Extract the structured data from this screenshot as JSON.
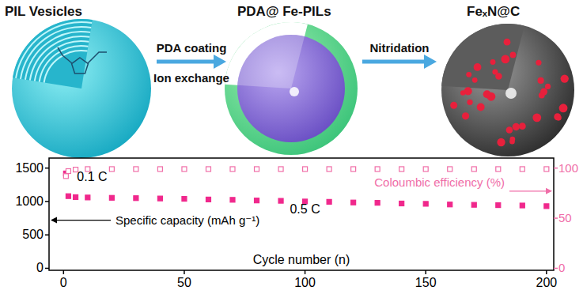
{
  "chart_data": {
    "type": "scatter",
    "xlabel": "Cycle number (n)",
    "ylabel": "Specific capacity (mAh g⁻¹)",
    "y2label": "Coloumbic efficiency (%)",
    "x": [
      1,
      2,
      5,
      10,
      20,
      30,
      40,
      50,
      60,
      70,
      80,
      90,
      100,
      110,
      120,
      130,
      140,
      150,
      160,
      170,
      180,
      190,
      200
    ],
    "series": [
      {
        "name": "Specific capacity",
        "color": "#f0288c",
        "marker": "square",
        "values": [
          1420,
          1080,
          1065,
          1060,
          1055,
          1050,
          1045,
          1040,
          1030,
          1025,
          1015,
          1010,
          1000,
          995,
          985,
          980,
          970,
          965,
          955,
          950,
          945,
          940,
          930
        ]
      },
      {
        "name": "Coloumbic efficiency",
        "color": "#f06ea8",
        "marker": "open-square",
        "axis": "y2",
        "values": [
          92,
          97,
          98.5,
          99,
          99,
          99,
          99,
          99,
          99,
          99,
          99,
          99,
          99,
          99,
          99,
          99,
          99,
          99,
          99,
          99,
          99,
          99,
          99
        ]
      }
    ],
    "xlim": [
      -6,
      203
    ],
    "xticks": [
      0,
      50,
      100,
      150,
      200
    ],
    "ylim": [
      -30,
      1650
    ],
    "yticks": [
      0,
      500,
      1000,
      1500
    ],
    "y2lim": [
      -2,
      110
    ],
    "y2ticks": [
      0,
      50,
      100
    ],
    "annotations": [
      {
        "text": "0.1 C"
      },
      {
        "text": "0.5 C"
      }
    ],
    "grid": false
  },
  "diagram": {
    "stages": [
      "PIL Vesicles",
      "PDA@ Fe-PILs",
      "FeₓN@C"
    ],
    "steps": [
      [
        "PDA coating",
        "Ion exchange"
      ],
      [
        "Nitridation"
      ]
    ]
  }
}
